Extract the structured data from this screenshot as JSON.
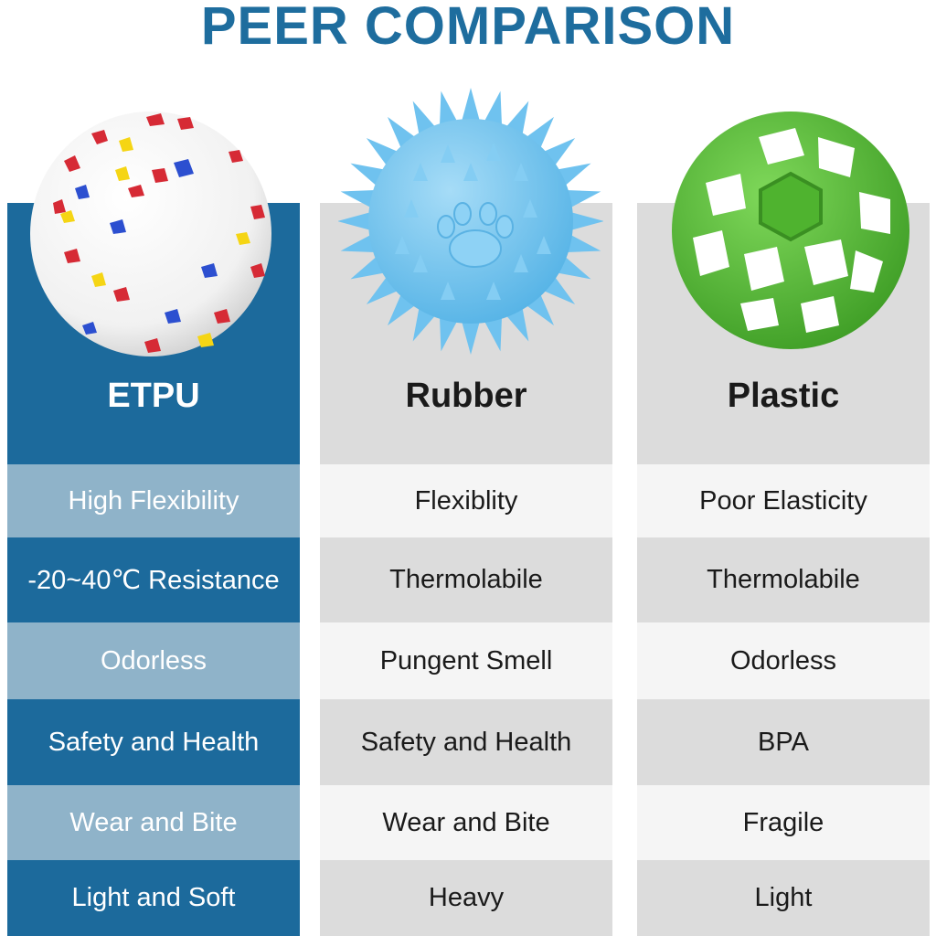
{
  "title": "PEER COMPARISON",
  "columns": [
    {
      "name": "ETPU",
      "ball": "white-etpu-ball",
      "rows": [
        "High Flexibility",
        "-20~40℃ Resistance",
        "Odorless",
        "Safety and Health",
        "Wear and Bite",
        "Light and Soft"
      ]
    },
    {
      "name": "Rubber",
      "ball": "blue-spiky-rubber-ball",
      "rows": [
        "Flexiblity",
        "Thermolabile",
        "Pungent Smell",
        "Safety and Health",
        "Wear and Bite",
        "Heavy"
      ]
    },
    {
      "name": "Plastic",
      "ball": "green-hexagon-plastic-ball",
      "rows": [
        "Poor Elasticity",
        "Thermolabile",
        "Odorless",
        "BPA",
        "Fragile",
        "Light"
      ]
    }
  ],
  "colors": {
    "title": "#1e6d9e",
    "etpu_dark": "#1c6a9c",
    "etpu_light": "#8fb3c9",
    "gray_dark": "#dcdcdc",
    "gray_light": "#f5f5f5",
    "rubber_ball": "#7cc8ee",
    "plastic_ball": "#5ec43a"
  }
}
